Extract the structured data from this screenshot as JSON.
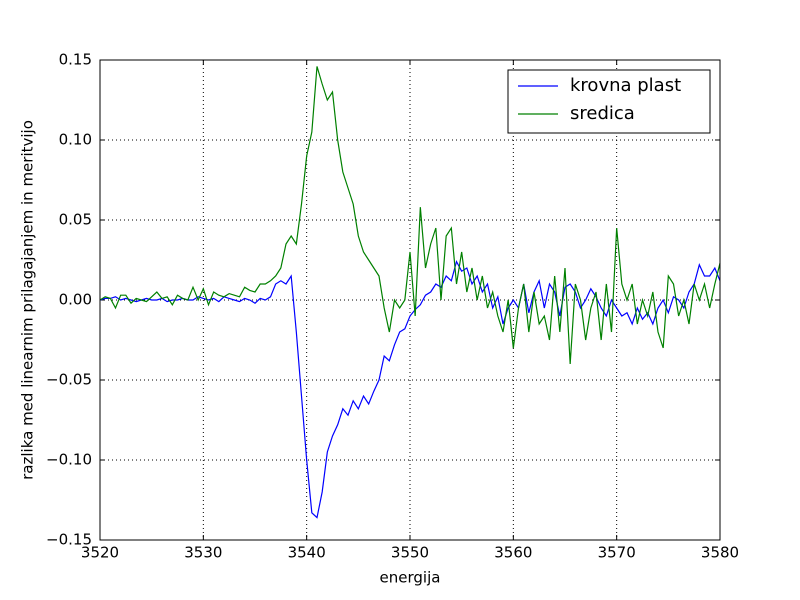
{
  "chart_data": {
    "type": "line",
    "xlabel": "energija",
    "ylabel": "razlika med linearnim prilagajanjem in meritvijo",
    "xlim": [
      3520,
      3580
    ],
    "xticks": [
      3520,
      3530,
      3540,
      3550,
      3560,
      3570,
      3580
    ],
    "ylim": [
      -0.15,
      0.15
    ],
    "yticks": [
      {
        "value": -0.15,
        "label": "−0.15"
      },
      {
        "value": -0.1,
        "label": "−0.10"
      },
      {
        "value": -0.05,
        "label": "−0.05"
      },
      {
        "value": 0,
        "label": "0.00"
      },
      {
        "value": 0.05,
        "label": "0.05"
      },
      {
        "value": 0.1,
        "label": "0.10"
      },
      {
        "value": 0.15,
        "label": "0.15"
      }
    ],
    "grid": true,
    "legend": "upper right",
    "x": [
      3520,
      3520.5,
      3521,
      3521.5,
      3522,
      3522.5,
      3523,
      3523.5,
      3524,
      3524.5,
      3525,
      3525.5,
      3526,
      3526.5,
      3527,
      3527.5,
      3528,
      3528.5,
      3529,
      3529.5,
      3530,
      3530.5,
      3531,
      3531.5,
      3532,
      3532.5,
      3533,
      3533.5,
      3534,
      3534.5,
      3535,
      3535.5,
      3536,
      3536.5,
      3537,
      3537.5,
      3538,
      3538.5,
      3539,
      3539.5,
      3540,
      3540.5,
      3541,
      3541.5,
      3542,
      3542.5,
      3543,
      3543.5,
      3544,
      3544.5,
      3545,
      3545.5,
      3546,
      3546.5,
      3547,
      3547.5,
      3548,
      3548.5,
      3549,
      3549.5,
      3550,
      3550.5,
      3551,
      3551.5,
      3552,
      3552.5,
      3553,
      3553.5,
      3554,
      3554.5,
      3555,
      3555.5,
      3556,
      3556.5,
      3557,
      3557.5,
      3558,
      3558.5,
      3559,
      3559.5,
      3560,
      3560.5,
      3561,
      3561.5,
      3562,
      3562.5,
      3563,
      3563.5,
      3564,
      3564.5,
      3565,
      3565.5,
      3566,
      3566.5,
      3567,
      3567.5,
      3568,
      3568.5,
      3569,
      3569.5,
      3570,
      3570.5,
      3571,
      3571.5,
      3572,
      3572.5,
      3573,
      3573.5,
      3574,
      3574.5,
      3575,
      3575.5,
      3576,
      3576.5,
      3577,
      3577.5,
      3578,
      3578.5,
      3579,
      3579.5,
      3580
    ],
    "series": [
      {
        "name": "krovna plast",
        "color": "#0000ff",
        "values": [
          0.0,
          0.001,
          0.001,
          0.002,
          0.0,
          0.001,
          0.0,
          -0.001,
          0.0,
          0.001,
          0.0,
          0.0,
          0.001,
          -0.001,
          0.0,
          0.0,
          0.001,
          0.0,
          0.0,
          0.002,
          0.001,
          0.0,
          0.001,
          -0.001,
          0.002,
          0.001,
          0.0,
          -0.001,
          0.001,
          0.0,
          -0.002,
          0.001,
          0.0,
          0.002,
          0.01,
          0.012,
          0.01,
          0.015,
          -0.02,
          -0.06,
          -0.1,
          -0.133,
          -0.136,
          -0.12,
          -0.095,
          -0.085,
          -0.078,
          -0.068,
          -0.072,
          -0.063,
          -0.068,
          -0.06,
          -0.065,
          -0.057,
          -0.05,
          -0.035,
          -0.038,
          -0.028,
          -0.02,
          -0.018,
          -0.01,
          -0.006,
          -0.003,
          0.003,
          0.005,
          0.01,
          0.008,
          0.015,
          0.012,
          0.024,
          0.018,
          0.02,
          0.01,
          0.015,
          0.005,
          0.01,
          -0.005,
          0.002,
          -0.015,
          -0.005,
          0.0,
          -0.005,
          0.01,
          -0.008,
          0.005,
          0.012,
          -0.005,
          0.01,
          0.005,
          -0.01,
          0.008,
          0.01,
          0.005,
          -0.005,
          0.0,
          0.007,
          0.002,
          -0.005,
          -0.01,
          0.0,
          -0.005,
          -0.01,
          -0.008,
          -0.015,
          -0.005,
          -0.012,
          -0.008,
          -0.015,
          -0.005,
          0.0,
          -0.008,
          0.002,
          0.0,
          -0.005,
          0.005,
          0.01,
          0.022,
          0.015,
          0.015,
          0.02,
          0.012
        ]
      },
      {
        "name": "sredica",
        "color": "#008000",
        "values": [
          0.0,
          0.002,
          0.001,
          -0.005,
          0.003,
          0.003,
          -0.002,
          0.001,
          0.0,
          -0.001,
          0.002,
          0.005,
          0.001,
          0.002,
          -0.003,
          0.003,
          0.001,
          0.0,
          0.008,
          0.0,
          0.007,
          -0.003,
          0.005,
          0.003,
          0.002,
          0.004,
          0.003,
          0.002,
          0.008,
          0.006,
          0.005,
          0.01,
          0.01,
          0.012,
          0.015,
          0.02,
          0.035,
          0.04,
          0.035,
          0.06,
          0.09,
          0.105,
          0.146,
          0.135,
          0.125,
          0.13,
          0.1,
          0.08,
          0.07,
          0.06,
          0.04,
          0.03,
          0.025,
          0.02,
          0.015,
          -0.005,
          -0.02,
          0.0,
          -0.005,
          0.0,
          0.03,
          -0.01,
          0.058,
          0.02,
          0.035,
          0.045,
          0.0,
          0.04,
          0.045,
          0.01,
          0.03,
          0.005,
          0.02,
          0.0,
          0.015,
          -0.005,
          0.005,
          -0.01,
          -0.02,
          0.0,
          -0.03,
          -0.005,
          0.01,
          -0.02,
          0.005,
          -0.015,
          -0.01,
          -0.025,
          0.015,
          -0.02,
          0.02,
          -0.04,
          0.01,
          0.0,
          -0.025,
          -0.005,
          0.005,
          -0.025,
          0.01,
          -0.02,
          0.045,
          0.01,
          0.0,
          0.01,
          -0.015,
          0.0,
          -0.01,
          0.005,
          -0.02,
          -0.03,
          0.015,
          0.01,
          -0.01,
          0.0,
          -0.015,
          0.01,
          0.0,
          0.01,
          -0.005,
          0.01,
          0.023
        ]
      }
    ]
  }
}
